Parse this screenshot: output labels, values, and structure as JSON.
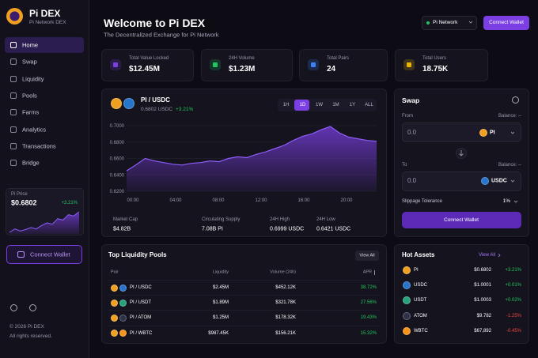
{
  "sidebar": {
    "brand": "Pi DEX",
    "tagline": "Pi Network DEX",
    "nav": [
      "Home",
      "Swap",
      "Liquidity",
      "Pools",
      "Farms",
      "Analytics",
      "Transactions",
      "Bridge"
    ],
    "price_card": {
      "label": "Pi Price",
      "price": "$0.6802",
      "change": "+3.21%",
      "sparkline": [
        0.65,
        0.655,
        0.652,
        0.654,
        0.657,
        0.655,
        0.66,
        0.664,
        0.662,
        0.67,
        0.668,
        0.676,
        0.674,
        0.68
      ]
    },
    "connect_wallet": "Connect Wallet",
    "footer": [
      "© 2026 Pi DEX",
      "All rights reserved."
    ]
  },
  "header": {
    "title": "Welcome to Pi DEX",
    "subtitle": "The Decentralized Exchange for Pi Network",
    "network": "Pi Network",
    "connect_wallet": "Connect Wallet"
  },
  "stats": [
    {
      "label": "Total Value Locked",
      "value": "$12.45M",
      "color": "#7b3fe4"
    },
    {
      "label": "24H Volume",
      "value": "$1.23M",
      "color": "#22c55e"
    },
    {
      "label": "Total Pairs",
      "value": "24",
      "color": "#3b82f6"
    },
    {
      "label": "Total Users",
      "value": "18.75K",
      "color": "#eab308"
    }
  ],
  "price_chart": {
    "pair": "PI / USDC",
    "price": "0.6802 USDC",
    "change": "+3.21%",
    "colors": [
      "#f0a020",
      "#2775ca"
    ],
    "ranges": [
      "1H",
      "1D",
      "1W",
      "1M",
      "1Y",
      "ALL"
    ],
    "values": [
      0.645,
      0.652,
      0.66,
      0.657,
      0.655,
      0.653,
      0.652,
      0.654,
      0.655,
      0.657,
      0.656,
      0.66,
      0.662,
      0.661,
      0.665,
      0.668,
      0.672,
      0.676,
      0.682,
      0.687,
      0.69,
      0.695,
      0.699,
      0.691,
      0.686,
      0.684,
      0.682,
      0.681
    ],
    "ylim": [
      0.62,
      0.7
    ],
    "yticks": [
      {
        "value": 0.7,
        "label": "0.7000"
      },
      {
        "value": 0.68,
        "label": "0.6800"
      },
      {
        "value": 0.66,
        "label": "0.6600"
      },
      {
        "value": 0.64,
        "label": "0.6400"
      },
      {
        "value": 0.62,
        "label": "0.6200"
      }
    ],
    "xticks": [
      "00:00",
      "04:00",
      "08:00",
      "12:00",
      "16:00",
      "20:00"
    ],
    "stats": [
      {
        "label": "Market Cap",
        "value": "$4.82B"
      },
      {
        "label": "Circulating Supply",
        "value": "7.08B PI"
      },
      {
        "label": "24H High",
        "value": "0.6999 USDC"
      },
      {
        "label": "24H Low",
        "value": "0.6421 USDC"
      }
    ]
  },
  "swap": {
    "title": "Swap",
    "from": "From",
    "to": "To",
    "balance": "Balance: --",
    "from_amount": "0.0",
    "from_token": "PI",
    "from_color": "#f0a020",
    "to_amount": "0.0",
    "to_token": "USDC",
    "to_color": "#2775ca",
    "slippage_label": "Slippage Tolerance",
    "slippage": "1%",
    "button": "Connect Wallet"
  },
  "pools": {
    "title": "Top Liquidity Pools",
    "view_all": "View All",
    "columns": [
      "Pair",
      "Liquidity",
      "Volume (24h)",
      "APR"
    ],
    "rows": [
      {
        "pair": "PI / USDC",
        "liquidity": "$2.45M",
        "volume": "$452.12K",
        "apr": "38.72%",
        "colors": [
          "#f0a020",
          "#2775ca"
        ]
      },
      {
        "pair": "PI / USDT",
        "liquidity": "$1.89M",
        "volume": "$321.78K",
        "apr": "27.56%",
        "colors": [
          "#f0a020",
          "#26a17b"
        ]
      },
      {
        "pair": "PI / ATOM",
        "liquidity": "$1.25M",
        "volume": "$178.32K",
        "apr": "19.43%",
        "colors": [
          "#f0a020",
          "#2e3148"
        ]
      },
      {
        "pair": "PI / WBTC",
        "liquidity": "$987.45K",
        "volume": "$156.21K",
        "apr": "15.32%",
        "colors": [
          "#f0a020",
          "#f7931a"
        ]
      }
    ]
  },
  "hot_assets": {
    "title": "Hot Assets",
    "view_all": "View All",
    "rows": [
      {
        "name": "PI",
        "price": "$0.6802",
        "change": "+3.21%",
        "color": "#f0a020"
      },
      {
        "name": "USDC",
        "price": "$1.0001",
        "change": "+0.01%",
        "color": "#2775ca"
      },
      {
        "name": "USDT",
        "price": "$1.0003",
        "change": "+0.02%",
        "color": "#26a17b"
      },
      {
        "name": "ATOM",
        "price": "$9.782",
        "change": "-1.25%",
        "color": "#2e3148"
      },
      {
        "name": "WBTC",
        "price": "$67,892",
        "change": "-0.45%",
        "color": "#f7931a"
      }
    ]
  }
}
